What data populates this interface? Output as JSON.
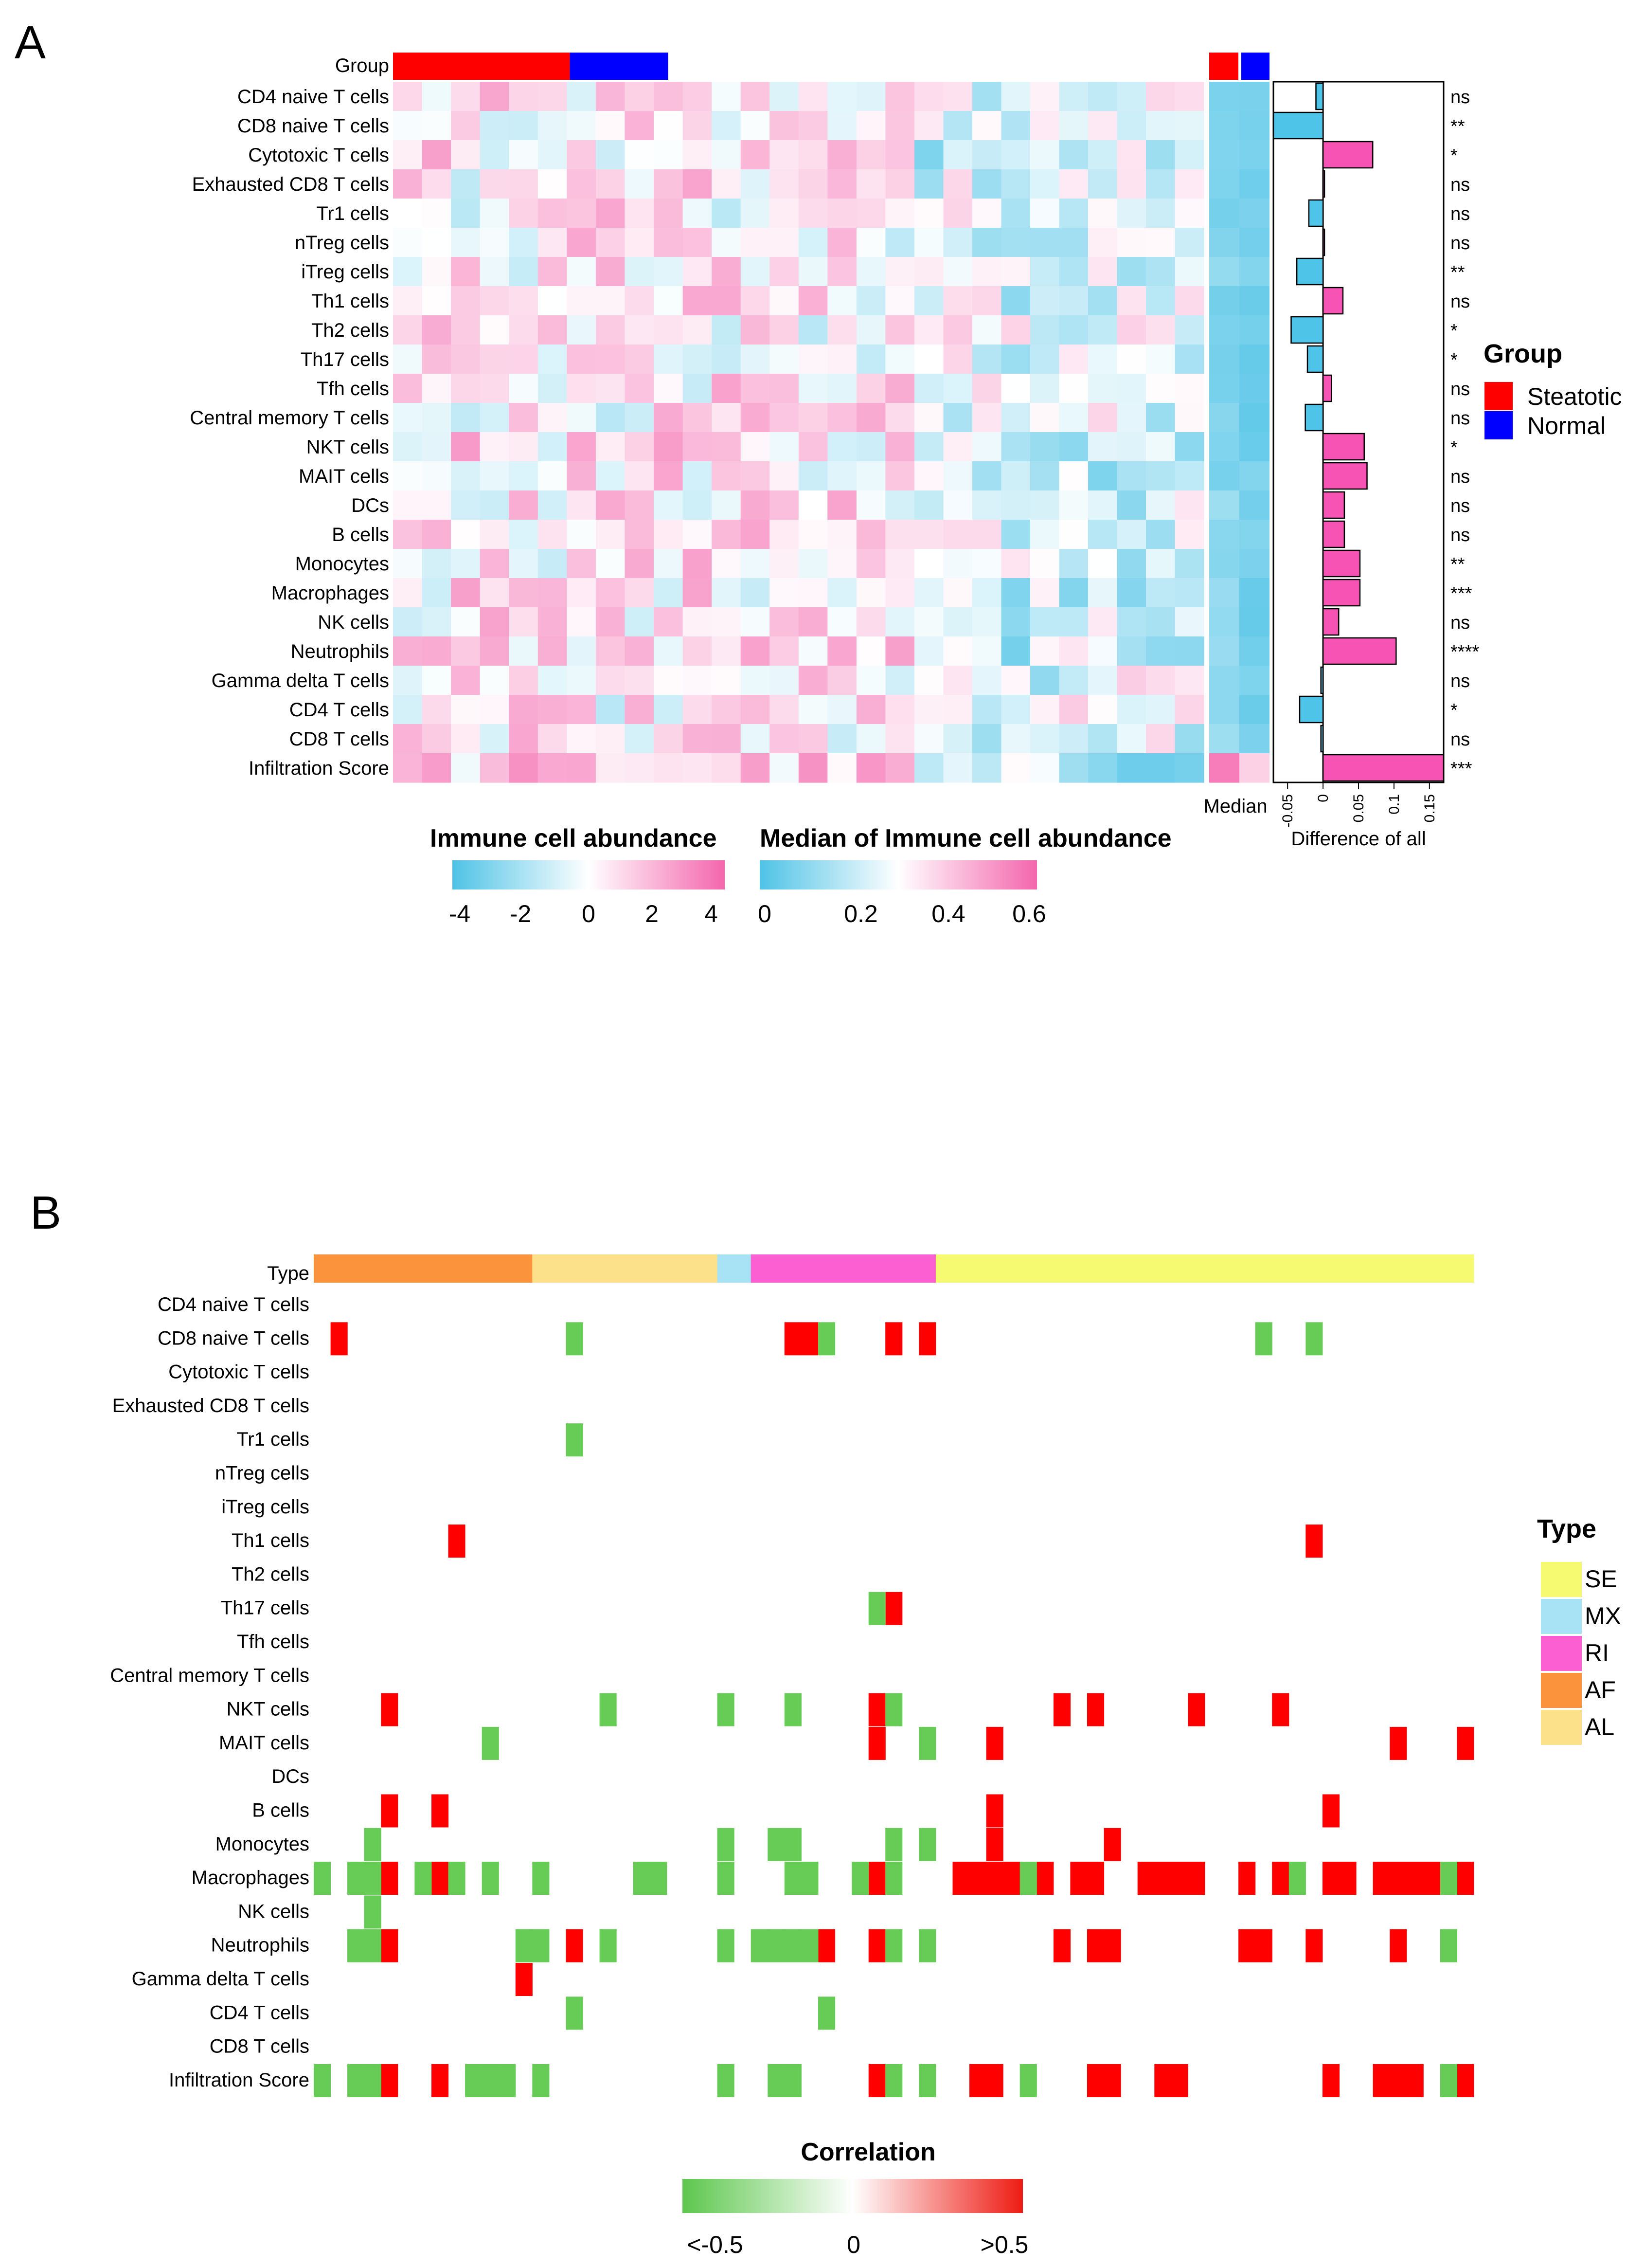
{
  "chart_data": [
    {
      "type": "heatmap",
      "panel_label": "A",
      "group_row_label": "Group",
      "rows": [
        "CD4 naive T cells",
        "CD8 naive T cells",
        "Cytotoxic T cells",
        "Exhausted  CD8 T cells",
        "Tr1 cells",
        "nTreg cells",
        "iTreg cells",
        "Th1 cells",
        "Th2 cells",
        "Th17 cells",
        "Tfh cells",
        "Central memory T cells",
        "NKT cells",
        "MAIT cells",
        "DCs",
        "B cells",
        "Monocytes",
        "Macrophages",
        "NK cells",
        "Neutrophils",
        "Gamma delta T cells",
        "CD4 T cells",
        "CD8 T cells",
        "Infiltration Score"
      ],
      "group_counts": {
        "Steatotic": 18,
        "Normal": 10
      },
      "median_label": "Median",
      "median_columns": [
        "Steatotic",
        "Normal"
      ],
      "legend": {
        "title": "Group",
        "items": [
          {
            "label": "Steatotic",
            "color": "#ff0000"
          },
          {
            "label": "Normal",
            "color": "#0000ff"
          }
        ]
      },
      "colorbar_abundance": {
        "title": "Immune  cell abundance",
        "ticks": [
          "-4",
          "-2",
          "0",
          "2",
          "4"
        ],
        "range": [
          -4,
          4
        ]
      },
      "colorbar_median": {
        "title": "Median of Immune  cell abundance",
        "ticks": [
          "0",
          "0.2",
          "0.4",
          "0.6"
        ],
        "range": [
          0,
          0.6
        ]
      },
      "difference_bars": {
        "xlabel": "Difference of all",
        "ticks": [
          "-0.05",
          "0",
          "0.05",
          "0.1",
          "0.15"
        ],
        "xlim": [
          -0.07,
          0.17
        ],
        "values": [
          -0.01,
          -0.07,
          0.07,
          0.002,
          -0.02,
          0.002,
          -0.037,
          0.028,
          -0.045,
          -0.022,
          0.012,
          -0.025,
          0.058,
          0.062,
          0.03,
          0.03,
          0.052,
          0.052,
          0.022,
          0.103,
          -0.003,
          -0.033,
          -0.003,
          0.17
        ],
        "significance": [
          "ns",
          "**",
          "*",
          "ns",
          "ns",
          "ns",
          "**",
          "ns",
          "*",
          "*",
          "ns",
          "ns",
          "*",
          "ns",
          "ns",
          "ns",
          "**",
          "***",
          "ns",
          "****",
          "ns",
          "*",
          "ns",
          "***"
        ]
      }
    },
    {
      "type": "heatmap",
      "panel_label": "B",
      "type_row_label": "Type",
      "rows": [
        "CD4 naive T cells",
        "CD8 naive T cells",
        "Cytotoxic T cells",
        "Exhausted  CD8 T cells",
        "Tr1 cells",
        "nTreg cells",
        "iTreg cells",
        "Th1 cells",
        "Th2 cells",
        "Th17 cells",
        "Tfh cells",
        "Central memory T cells",
        "NKT cells",
        "MAIT cells",
        "DCs",
        "B cells",
        "Monocytes",
        "Macrophages",
        "NK cells",
        "Neutrophils",
        "Gamma delta T cells",
        "CD4 T cells",
        "CD8 T cells",
        "Infiltration Score"
      ],
      "n_columns": 69,
      "type_segments": [
        {
          "type": "AF",
          "count": 13
        },
        {
          "type": "AL",
          "count": 11
        },
        {
          "type": "MX",
          "count": 2
        },
        {
          "type": "RI",
          "count": 11
        },
        {
          "type": "SE",
          "count": 32
        }
      ],
      "legend": {
        "title": "Type",
        "items": [
          {
            "label": "SE",
            "color": "#f5fa70"
          },
          {
            "label": "MX",
            "color": "#a8e2f5"
          },
          {
            "label": "RI",
            "color": "#fb5fd2"
          },
          {
            "label": "AF",
            "color": "#fb923c"
          },
          {
            "label": "AL",
            "color": "#fde08a"
          }
        ]
      },
      "colorbar": {
        "title": "Correlation",
        "ticks": [
          "<-0.5",
          "0",
          ">0.5"
        ],
        "range": [
          -0.5,
          0.5
        ]
      },
      "significant_cells": [
        {
          "row": "CD8 naive T cells",
          "positive": [
            1,
            28,
            29,
            34,
            36
          ],
          "negative": [
            15,
            30,
            56,
            59
          ]
        },
        {
          "row": "Tr1 cells",
          "positive": [],
          "negative": [
            15
          ]
        },
        {
          "row": "Th1 cells",
          "positive": [
            8,
            59
          ],
          "negative": []
        },
        {
          "row": "Th17 cells",
          "positive": [
            34
          ],
          "negative": [
            33
          ]
        },
        {
          "row": "NKT cells",
          "positive": [
            4,
            33,
            44,
            46,
            52,
            57
          ],
          "negative": [
            17,
            24,
            28,
            34
          ]
        },
        {
          "row": "MAIT cells",
          "positive": [
            33,
            40,
            64,
            68
          ],
          "negative": [
            10,
            36
          ]
        },
        {
          "row": "B cells",
          "positive": [
            4,
            7,
            40,
            60
          ],
          "negative": []
        },
        {
          "row": "Monocytes",
          "positive": [
            40,
            47
          ],
          "negative": [
            3,
            24,
            27,
            28,
            34,
            36
          ]
        },
        {
          "row": "Macrophages",
          "positive": [
            4,
            7,
            33,
            38,
            39,
            40,
            41,
            43,
            45,
            46,
            49,
            50,
            51,
            52,
            55,
            57,
            60,
            61,
            63,
            64,
            65,
            66,
            68
          ],
          "negative": [
            0,
            2,
            3,
            6,
            8,
            10,
            13,
            19,
            20,
            24,
            28,
            29,
            32,
            34,
            42,
            58,
            67
          ]
        },
        {
          "row": "NK cells",
          "positive": [],
          "negative": [
            3
          ]
        },
        {
          "row": "Neutrophils",
          "positive": [
            4,
            15,
            30,
            33,
            44,
            46,
            47,
            55,
            56,
            59,
            64
          ],
          "negative": [
            2,
            3,
            12,
            13,
            17,
            24,
            26,
            27,
            28,
            29,
            34,
            36,
            67
          ]
        },
        {
          "row": "Gamma delta T cells",
          "positive": [
            12
          ],
          "negative": []
        },
        {
          "row": "CD4 T cells",
          "positive": [],
          "negative": [
            15,
            30
          ]
        },
        {
          "row": "Infiltration Score",
          "positive": [
            4,
            7,
            33,
            39,
            40,
            46,
            47,
            50,
            51,
            60,
            63,
            64,
            65,
            68
          ],
          "negative": [
            0,
            2,
            3,
            9,
            10,
            11,
            13,
            24,
            27,
            28,
            34,
            36,
            42,
            67
          ]
        }
      ]
    }
  ]
}
